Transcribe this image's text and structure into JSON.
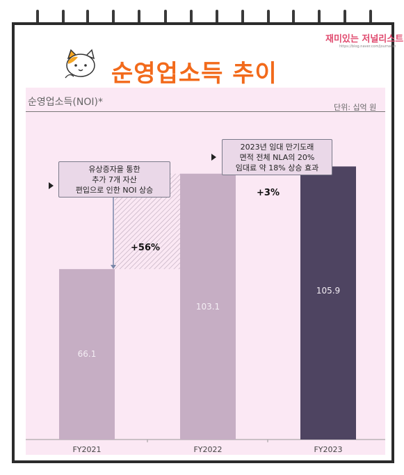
{
  "header": {
    "title": "순영업소득 추이",
    "brand": "재미있는 저널리스트",
    "brand_url": "https://blog.naver.com/journalist"
  },
  "chart_data": {
    "type": "bar",
    "title": "순영업소득(NOI)*",
    "unit": "단위: 십억 원",
    "categories": [
      "FY2021",
      "FY2022",
      "FY2023"
    ],
    "values": [
      66.1,
      103.1,
      105.9
    ],
    "value_labels": [
      "66.1",
      "103.1",
      "105.9"
    ],
    "ylim": [
      0,
      130
    ],
    "bar_colors": [
      "#c6aec4",
      "#c6aec4",
      "#4e4461"
    ],
    "annotations": [
      {
        "change": "+56%",
        "from": "FY2021",
        "to": "FY2022",
        "note": [
          "유상증자을 통한",
          "추가 7개 자산",
          "편입으로 인한 NOI 상승"
        ]
      },
      {
        "change": "+3%",
        "from": "FY2022",
        "to": "FY2023",
        "note": [
          "2023년 임대 만기도래",
          "면적 전체 NLA의 20%",
          "임대료 약 18% 상승 효과"
        ]
      }
    ]
  }
}
